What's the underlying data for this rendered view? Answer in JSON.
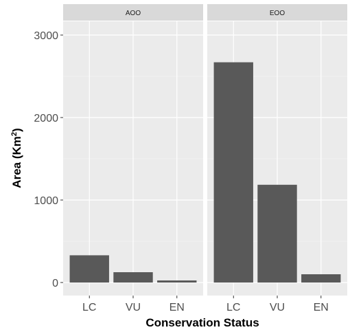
{
  "chart_data": {
    "type": "bar",
    "xlabel": "Conservation Status",
    "ylabel": "Area (Km",
    "ylabel_superscript": "2",
    "ylabel_suffix": ")",
    "categories": [
      "LC",
      "VU",
      "EN"
    ],
    "ylim": [
      0,
      3000
    ],
    "yticks": [
      0,
      1000,
      2000,
      3000
    ],
    "ytick_labels": [
      "0",
      "1000",
      "2000",
      "3000"
    ],
    "grid": true,
    "legend": "none",
    "bar_color": "#595959",
    "panel_background": "#ebebeb",
    "strip_background": "#d9d9d9",
    "facets": [
      {
        "label": "AOO",
        "values": [
          330,
          125,
          25
        ]
      },
      {
        "label": "EOO",
        "values": [
          2670,
          1185,
          100
        ]
      }
    ]
  }
}
